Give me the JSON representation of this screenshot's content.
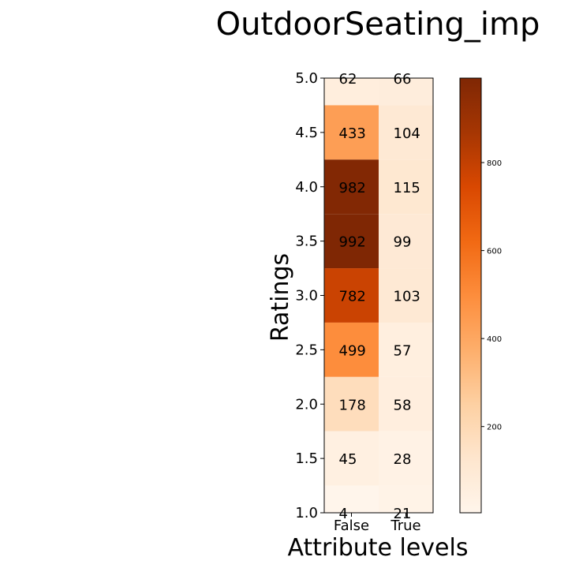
{
  "chart_data": {
    "type": "heatmap",
    "title": "OutdoorSeating_imp",
    "xlabel": "Attribute levels",
    "ylabel": "Ratings",
    "x_categories": [
      "False",
      "True"
    ],
    "y_ticks": [
      "1.0",
      "1.5",
      "2.0",
      "2.5",
      "3.0",
      "3.5",
      "4.0",
      "4.5",
      "5.0"
    ],
    "rows_top_to_bottom": [
      {
        "rating": "5.0",
        "values": [
          62,
          66
        ]
      },
      {
        "rating": "4.5",
        "values": [
          433,
          104
        ]
      },
      {
        "rating": "4.0",
        "values": [
          982,
          115
        ]
      },
      {
        "rating": "3.5",
        "values": [
          992,
          99
        ]
      },
      {
        "rating": "3.0",
        "values": [
          782,
          103
        ]
      },
      {
        "rating": "2.5",
        "values": [
          499,
          57
        ]
      },
      {
        "rating": "2.0",
        "values": [
          178,
          58
        ]
      },
      {
        "rating": "1.5",
        "values": [
          45,
          28
        ]
      },
      {
        "rating": "1.0",
        "values": [
          4,
          21
        ]
      }
    ],
    "colormap": "Oranges",
    "value_range": [
      4,
      992
    ],
    "colorbar_ticks": [
      200,
      400,
      600,
      800
    ]
  }
}
